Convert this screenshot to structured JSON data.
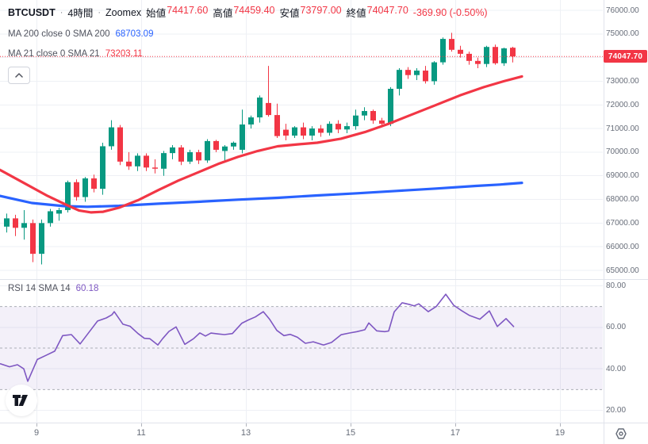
{
  "header": {
    "symbol": "BTCUSDT",
    "separator": "·",
    "interval": "4時間",
    "exchange": "Zoomex",
    "ohlc": [
      {
        "label": "始値",
        "value": "74417.60"
      },
      {
        "label": "高値",
        "value": "74459.40"
      },
      {
        "label": "安値",
        "value": "73797.00"
      },
      {
        "label": "終値",
        "value": "74047.70"
      }
    ],
    "change": "-369.90 (-0.50%)"
  },
  "indicators": {
    "ma200": {
      "label": "MA 200 close 0 SMA 200",
      "value": "68703.09"
    },
    "ma21": {
      "label": "MA 21 close 0 SMA 21",
      "value": "73203.11"
    },
    "rsi": {
      "label": "RSI 14 SMA 14",
      "value": "60.18"
    }
  },
  "colors": {
    "up": "#089981",
    "down": "#F23645",
    "ma200": "#2962FF",
    "ma21": "#F23645",
    "rsi": "#7E57C2",
    "badge": "#F23645",
    "grid": "#EEF0F5",
    "separator": "#E0E3EB",
    "band_fill": "rgba(126,87,194,0.09)",
    "dashed_level": "#ABAEB8",
    "axis_text": "#676D79"
  },
  "price_axis": {
    "labels": [
      "76000.00",
      "75000.00",
      "73000.00",
      "72000.00",
      "71000.00",
      "70000.00",
      "69000.00",
      "68000.00",
      "67000.00",
      "66000.00",
      "65000.00"
    ],
    "badge": "74047.70"
  },
  "rsi_axis": {
    "labels": [
      "80.00",
      "60.00",
      "40.00",
      "20.00"
    ]
  },
  "time_axis": {
    "labels": [
      "9",
      "11",
      "13",
      "15",
      "17",
      "19"
    ]
  },
  "chart_data": {
    "type": "candlestick",
    "title": "BTCUSDT 4時間 Zoomex",
    "price_ylim": [
      65000,
      76000
    ],
    "rsi_ylim": [
      20,
      80
    ],
    "rsi_levels": [
      70,
      50,
      30
    ],
    "grid": true,
    "current_price": 74047.7,
    "candles": [
      [
        66850,
        67400,
        66600,
        67200
      ],
      [
        67200,
        67350,
        66450,
        66800
      ],
      [
        66800,
        67550,
        66300,
        67000
      ],
      [
        67000,
        67150,
        65350,
        65700
      ],
      [
        65700,
        67150,
        65250,
        67000
      ],
      [
        67000,
        67600,
        66850,
        67500
      ],
      [
        67400,
        67650,
        67100,
        67550
      ],
      [
        67550,
        68800,
        67450,
        68730
      ],
      [
        68730,
        68850,
        67950,
        68100
      ],
      [
        68100,
        68950,
        67900,
        68890
      ],
      [
        68890,
        69050,
        68300,
        68450
      ],
      [
        68450,
        70400,
        68200,
        70250
      ],
      [
        70250,
        71350,
        70100,
        71050
      ],
      [
        71050,
        71150,
        69450,
        69600
      ],
      [
        69600,
        70000,
        69250,
        69400
      ],
      [
        69400,
        69950,
        69200,
        69850
      ],
      [
        69850,
        69950,
        69200,
        69350
      ],
      [
        69350,
        69700,
        69100,
        69300
      ],
      [
        69300,
        70050,
        69000,
        69960
      ],
      [
        69960,
        70300,
        69700,
        70200
      ],
      [
        70200,
        70300,
        69450,
        69600
      ],
      [
        69600,
        70100,
        69500,
        70000
      ],
      [
        70000,
        70100,
        69500,
        69650
      ],
      [
        69650,
        70550,
        69550,
        70470
      ],
      [
        70470,
        70520,
        70000,
        70100
      ],
      [
        70050,
        70300,
        69650,
        70240
      ],
      [
        70240,
        70450,
        70100,
        70400
      ],
      [
        70100,
        71800,
        69950,
        71170
      ],
      [
        71170,
        71550,
        71000,
        71470
      ],
      [
        71470,
        72400,
        71250,
        72310
      ],
      [
        72080,
        73650,
        71500,
        71570
      ],
      [
        71570,
        72050,
        70600,
        70680
      ],
      [
        70950,
        71200,
        70500,
        70700
      ],
      [
        70700,
        71100,
        70600,
        71050
      ],
      [
        71050,
        71250,
        70550,
        70700
      ],
      [
        70700,
        71100,
        70500,
        71000
      ],
      [
        71000,
        71150,
        70650,
        70820
      ],
      [
        70820,
        71300,
        70700,
        71200
      ],
      [
        71200,
        71350,
        70800,
        70960
      ],
      [
        70960,
        71250,
        70800,
        71100
      ],
      [
        71100,
        71800,
        70950,
        71550
      ],
      [
        71550,
        71900,
        71350,
        71740
      ],
      [
        71740,
        71800,
        71200,
        71340
      ],
      [
        71340,
        71450,
        71050,
        71200
      ],
      [
        71200,
        72750,
        71100,
        72680
      ],
      [
        72680,
        73550,
        72400,
        73480
      ],
      [
        73480,
        73600,
        73100,
        73260
      ],
      [
        73260,
        73550,
        73050,
        73450
      ],
      [
        73450,
        73650,
        72900,
        73000
      ],
      [
        73000,
        73850,
        72850,
        73800
      ],
      [
        73800,
        74850,
        73700,
        74790
      ],
      [
        74790,
        75050,
        74250,
        74330
      ],
      [
        74330,
        74500,
        74000,
        74160
      ],
      [
        74160,
        74250,
        73700,
        73860
      ],
      [
        73860,
        74000,
        73550,
        73730
      ],
      [
        73730,
        74500,
        73600,
        74450
      ],
      [
        74450,
        74550,
        73700,
        73760
      ],
      [
        73760,
        74420,
        73650,
        74390
      ],
      [
        74417.6,
        74459.4,
        73797.0,
        74047.7
      ]
    ],
    "ma200_points": [
      [
        0,
        68150
      ],
      [
        40,
        67850
      ],
      [
        80,
        67720
      ],
      [
        110,
        67690
      ],
      [
        150,
        67730
      ],
      [
        200,
        67820
      ],
      [
        250,
        67900
      ],
      [
        300,
        67990
      ],
      [
        350,
        68070
      ],
      [
        400,
        68170
      ],
      [
        450,
        68260
      ],
      [
        500,
        68360
      ],
      [
        550,
        68460
      ],
      [
        600,
        68570
      ],
      [
        630,
        68630
      ],
      [
        658,
        68703
      ]
    ],
    "ma21_points": [
      [
        0,
        69250
      ],
      [
        30,
        68700
      ],
      [
        60,
        68150
      ],
      [
        85,
        67750
      ],
      [
        100,
        67530
      ],
      [
        115,
        67450
      ],
      [
        130,
        67480
      ],
      [
        150,
        67650
      ],
      [
        175,
        67980
      ],
      [
        200,
        68400
      ],
      [
        225,
        68800
      ],
      [
        250,
        69150
      ],
      [
        275,
        69500
      ],
      [
        300,
        69800
      ],
      [
        325,
        70050
      ],
      [
        350,
        70250
      ],
      [
        375,
        70330
      ],
      [
        400,
        70400
      ],
      [
        430,
        70570
      ],
      [
        460,
        70850
      ],
      [
        490,
        71200
      ],
      [
        520,
        71600
      ],
      [
        550,
        72000
      ],
      [
        580,
        72400
      ],
      [
        610,
        72750
      ],
      [
        635,
        73000
      ],
      [
        658,
        73203
      ]
    ],
    "rsi_points": [
      [
        0,
        42.5
      ],
      [
        12,
        41
      ],
      [
        22,
        42
      ],
      [
        30,
        40
      ],
      [
        35,
        34
      ],
      [
        47,
        44.5
      ],
      [
        58,
        46.5
      ],
      [
        69,
        48.5
      ],
      [
        79,
        56
      ],
      [
        90,
        56.5
      ],
      [
        101,
        52
      ],
      [
        112,
        57.5
      ],
      [
        123,
        63
      ],
      [
        134,
        64.5
      ],
      [
        141,
        66
      ],
      [
        144,
        67.5
      ],
      [
        155,
        61.5
      ],
      [
        164,
        60.5
      ],
      [
        174,
        57
      ],
      [
        182,
        54.7
      ],
      [
        189,
        54.5
      ],
      [
        199,
        51.5
      ],
      [
        205,
        54.5
      ],
      [
        213,
        58
      ],
      [
        222,
        60.2
      ],
      [
        233,
        51.8
      ],
      [
        244,
        54.5
      ],
      [
        252,
        57.3
      ],
      [
        259,
        55.8
      ],
      [
        266,
        57.2
      ],
      [
        275,
        56.8
      ],
      [
        283,
        56.5
      ],
      [
        293,
        57
      ],
      [
        305,
        62
      ],
      [
        313,
        63.5
      ],
      [
        322,
        65
      ],
      [
        332,
        67.5
      ],
      [
        340,
        63.8
      ],
      [
        349,
        58.5
      ],
      [
        358,
        56
      ],
      [
        366,
        56.6
      ],
      [
        375,
        55.2
      ],
      [
        385,
        52.3
      ],
      [
        395,
        53
      ],
      [
        405,
        51.8
      ],
      [
        408,
        51.5
      ],
      [
        418,
        52.7
      ],
      [
        430,
        56.4
      ],
      [
        440,
        57.2
      ],
      [
        450,
        57.9
      ],
      [
        460,
        58.8
      ],
      [
        465,
        62.1
      ],
      [
        475,
        58.3
      ],
      [
        485,
        57.9
      ],
      [
        490,
        58.2
      ],
      [
        497,
        67.4
      ],
      [
        507,
        71.8
      ],
      [
        517,
        70.9
      ],
      [
        522,
        70.3
      ],
      [
        528,
        71.3
      ],
      [
        540,
        67.5
      ],
      [
        550,
        70
      ],
      [
        562,
        75.9
      ],
      [
        572,
        70.6
      ],
      [
        582,
        68
      ],
      [
        592,
        65.7
      ],
      [
        605,
        63.9
      ],
      [
        617,
        67.9
      ],
      [
        627,
        60.4
      ],
      [
        638,
        64.2
      ],
      [
        648,
        60.18
      ]
    ]
  }
}
